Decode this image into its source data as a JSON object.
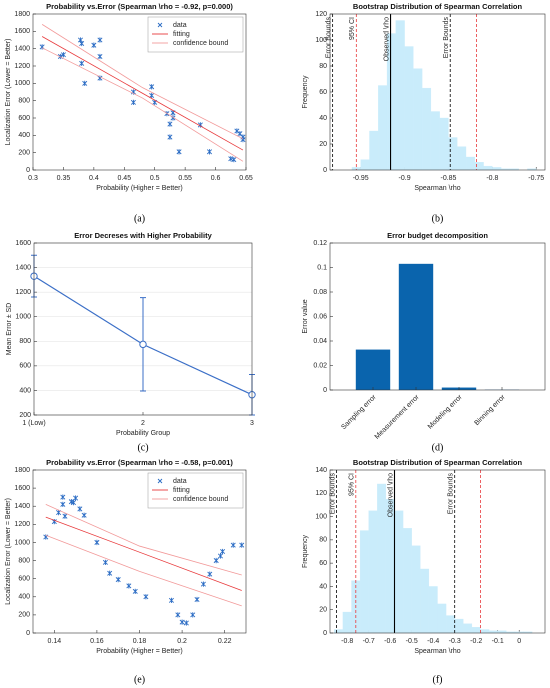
{
  "chart_data": [
    {
      "type": "scatter",
      "title": "Probability vs.Error (Spearman \\rho = -0.92, p=0.000)",
      "x_label": "Probability (Higher = Better)",
      "y_label": "Localization Error (Lower = Better)",
      "caption": "(a)",
      "xlim": [
        0.3,
        0.65
      ],
      "xticks": [
        0.3,
        0.35,
        0.4,
        0.45,
        0.5,
        0.55,
        0.6,
        0.65
      ],
      "ylim": [
        0,
        1800
      ],
      "yticks": [
        0,
        200,
        400,
        600,
        800,
        1000,
        1200,
        1400,
        1600,
        1800
      ],
      "legend": "upper right",
      "series": [
        {
          "name": "data",
          "color": "#2b6cc4",
          "mode": "markers",
          "x": [
            0.315,
            0.345,
            0.35,
            0.378,
            0.38,
            0.38,
            0.385,
            0.4,
            0.41,
            0.41,
            0.41,
            0.465,
            0.465,
            0.495,
            0.495,
            0.5,
            0.52,
            0.525,
            0.53,
            0.53,
            0.525,
            0.54,
            0.575,
            0.59,
            0.625,
            0.63,
            0.635,
            0.64,
            0.645,
            0.645
          ],
          "y": [
            1420,
            1310,
            1330,
            1500,
            1460,
            1230,
            1000,
            1440,
            1500,
            1310,
            1060,
            900,
            780,
            960,
            860,
            780,
            650,
            530,
            660,
            600,
            380,
            210,
            520,
            210,
            130,
            120,
            450,
            420,
            380,
            350
          ]
        },
        {
          "name": "fitting",
          "color": "#e8393b",
          "mode": "line",
          "x": [
            0.315,
            0.645
          ],
          "y": [
            1540,
            230
          ]
        },
        {
          "name": "confidence bound",
          "color": "#f29a9a",
          "mode": "line",
          "x": [
            0.315,
            0.48,
            0.645
          ],
          "y": [
            1680,
            950,
            360
          ]
        },
        {
          "color": "#f29a9a",
          "mode": "line",
          "x": [
            0.315,
            0.48,
            0.645
          ],
          "y": [
            1410,
            830,
            100
          ]
        }
      ]
    },
    {
      "type": "histogram",
      "title": "Bootstrap Distribution of Spearman Correlation",
      "x_label": "Spearman \\rho",
      "y_label": "Frequency",
      "caption": "(b)",
      "color": "#c9ecfb",
      "xlim": [
        -0.985,
        -0.74
      ],
      "xticks": [
        -0.95,
        -0.9,
        -0.85,
        -0.8,
        -0.75
      ],
      "ylim": [
        0,
        120
      ],
      "yticks": [
        0,
        20,
        40,
        60,
        80,
        100,
        120
      ],
      "bins": [
        -0.96,
        -0.95,
        -0.94,
        -0.93,
        -0.92,
        -0.91,
        -0.9,
        -0.89,
        -0.88,
        -0.87,
        -0.86,
        -0.85,
        -0.84,
        -0.83,
        -0.82,
        -0.81,
        -0.8,
        -0.79,
        -0.78,
        -0.77,
        -0.76,
        -0.75
      ],
      "values": [
        2,
        8,
        30,
        65,
        105,
        115,
        95,
        78,
        63,
        45,
        40,
        25,
        18,
        10,
        6,
        3,
        2,
        1,
        1,
        0,
        1
      ],
      "reference_lines": [
        {
          "x": -0.982,
          "label": "Error Bounds",
          "color": "#000000",
          "dash": true
        },
        {
          "x": -0.955,
          "label": "95% CI",
          "color": "#e8393b",
          "dash": true
        },
        {
          "x": -0.916,
          "label": "Observed \\rho",
          "color": "#000000",
          "dash": false
        },
        {
          "x": -0.848,
          "label": "Error Bounds",
          "color": "#000000",
          "dash": true
        },
        {
          "x": -0.818,
          "color": "#e8393b",
          "dash": true
        }
      ]
    },
    {
      "type": "errorbar",
      "title": "Error Decreses with Higher Probability",
      "x_label": "Probability Group",
      "y_label": "Mean Error ± SD",
      "caption": "(c)",
      "color": "#3b6fc7",
      "grid": true,
      "categories": [
        "1 (Low)",
        "2",
        "3"
      ],
      "values": [
        1330,
        775,
        365
      ],
      "errors": [
        170,
        380,
        165
      ],
      "ylim": [
        200,
        1600
      ],
      "yticks": [
        200,
        400,
        600,
        800,
        1000,
        1200,
        1400,
        1600
      ]
    },
    {
      "type": "bar",
      "title": "Error budget decomposition",
      "y_label": "Error value",
      "caption": "(d)",
      "color": "#0a64ad",
      "categories": [
        "Sampling error",
        "Measurement error",
        "Modeling error",
        "Binning error"
      ],
      "values": [
        0.033,
        0.103,
        0.002,
        0.0002
      ],
      "ylim": [
        0,
        0.12
      ],
      "yticks": [
        0,
        0.02,
        0.04,
        0.06,
        0.08,
        0.1,
        0.12
      ]
    },
    {
      "type": "scatter",
      "title": "Probability vs.Error (Spearman \\rho = -0.58, p=0.001)",
      "x_label": "Probability (Higher = Better)",
      "y_label": "Localization Error (Lower = Better)",
      "caption": "(e)",
      "xlim": [
        0.13,
        0.23
      ],
      "xticks": [
        0.14,
        0.16,
        0.18,
        0.2,
        0.22
      ],
      "ylim": [
        0,
        1800
      ],
      "yticks": [
        0,
        200,
        400,
        600,
        800,
        1000,
        1200,
        1400,
        1600,
        1800
      ],
      "legend": "upper right",
      "series": [
        {
          "name": "data",
          "color": "#2b6cc4",
          "mode": "markers",
          "x": [
            0.136,
            0.14,
            0.142,
            0.144,
            0.144,
            0.145,
            0.148,
            0.149,
            0.15,
            0.152,
            0.154,
            0.16,
            0.164,
            0.166,
            0.17,
            0.175,
            0.178,
            0.183,
            0.195,
            0.198,
            0.2,
            0.202,
            0.205,
            0.207,
            0.21,
            0.213,
            0.216,
            0.218,
            0.219,
            0.224,
            0.228
          ],
          "y": [
            1060,
            1230,
            1330,
            1500,
            1420,
            1290,
            1450,
            1440,
            1490,
            1370,
            1300,
            1000,
            780,
            660,
            590,
            520,
            460,
            400,
            360,
            200,
            120,
            110,
            200,
            370,
            540,
            650,
            800,
            850,
            900,
            970,
            970
          ]
        },
        {
          "name": "fitting",
          "color": "#e8393b",
          "mode": "line",
          "x": [
            0.136,
            0.228
          ],
          "y": [
            1280,
            470
          ]
        },
        {
          "name": "confidence bound",
          "color": "#f29a9a",
          "mode": "line",
          "x": [
            0.136,
            0.18,
            0.228
          ],
          "y": [
            1420,
            960,
            640
          ]
        },
        {
          "color": "#f29a9a",
          "mode": "line",
          "x": [
            0.136,
            0.18,
            0.228
          ],
          "y": [
            1080,
            680,
            300
          ]
        }
      ]
    },
    {
      "type": "histogram",
      "title": "Bootstrap Distribution of Spearman Correlation",
      "x_label": "Spearman \\rho",
      "y_label": "Frequency",
      "caption": "(f)",
      "color": "#c9ecfb",
      "xlim": [
        -0.88,
        0.12
      ],
      "xticks": [
        -0.8,
        -0.7,
        -0.6,
        -0.5,
        -0.4,
        -0.3,
        -0.2,
        -0.1,
        0
      ],
      "ylim": [
        0,
        140
      ],
      "yticks": [
        0,
        20,
        40,
        60,
        80,
        100,
        120,
        140
      ],
      "bins": [
        -0.86,
        -0.82,
        -0.78,
        -0.74,
        -0.7,
        -0.66,
        -0.62,
        -0.58,
        -0.54,
        -0.5,
        -0.46,
        -0.42,
        -0.38,
        -0.34,
        -0.3,
        -0.26,
        -0.22,
        -0.18,
        -0.14,
        -0.1,
        -0.06,
        -0.02,
        0.02,
        0.06
      ],
      "values": [
        3,
        18,
        45,
        88,
        105,
        128,
        115,
        105,
        90,
        75,
        55,
        40,
        25,
        15,
        12,
        8,
        5,
        3,
        2,
        2,
        1,
        1,
        1
      ],
      "reference_lines": [
        {
          "x": -0.85,
          "label": "Error Bounds",
          "color": "#000000",
          "dash": true
        },
        {
          "x": -0.76,
          "label": "95% CI",
          "color": "#e8393b",
          "dash": true
        },
        {
          "x": -0.58,
          "label": "Observed \\rho",
          "color": "#000000",
          "dash": false
        },
        {
          "x": -0.3,
          "label": "Error Bounds",
          "color": "#000000",
          "dash": true
        },
        {
          "x": -0.18,
          "color": "#e8393b",
          "dash": true
        }
      ]
    }
  ]
}
